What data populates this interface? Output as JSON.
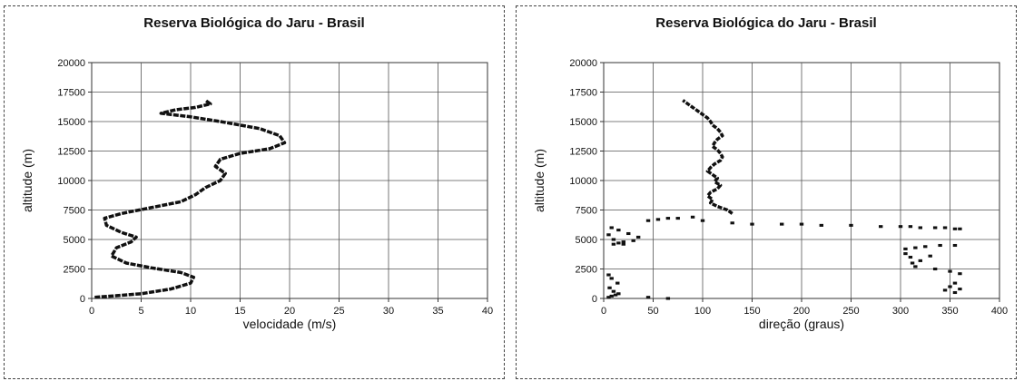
{
  "chart_data": [
    {
      "type": "line",
      "title": "Reserva Biológica do Jaru - Brasil",
      "xlabel": "velocidade (m/s)",
      "ylabel": "altitude (m)",
      "xlim": [
        0,
        40
      ],
      "ylim": [
        0,
        20000
      ],
      "xticks": [
        "0",
        "5",
        "10",
        "15",
        "20",
        "25",
        "30",
        "35",
        "40"
      ],
      "yticks": [
        "0",
        "2500",
        "5000",
        "7500",
        "10000",
        "12500",
        "15000",
        "17500",
        "20000"
      ],
      "grid": true,
      "series": [
        {
          "x": [
            0.3,
            2,
            5,
            8,
            10,
            10.3,
            9,
            6,
            3.5,
            2,
            2.5,
            4,
            4.5,
            3,
            1.5,
            1.3,
            3,
            6,
            9,
            10.5,
            11.5,
            13,
            13.5,
            12.5,
            13,
            15,
            18,
            19.5,
            19,
            17,
            13,
            10,
            7,
            8.5,
            10.5,
            12,
            11.5
          ],
          "y": [
            100,
            200,
            400,
            800,
            1300,
            1800,
            2200,
            2600,
            3000,
            3600,
            4300,
            4800,
            5200,
            5600,
            6200,
            6800,
            7200,
            7700,
            8200,
            8800,
            9400,
            10000,
            10600,
            11200,
            11800,
            12300,
            12700,
            13200,
            13800,
            14400,
            15000,
            15400,
            15700,
            16000,
            16200,
            16500,
            16800
          ]
        }
      ]
    },
    {
      "type": "scatter",
      "title": "Reserva Biológica do Jaru - Brasil",
      "xlabel": "direção (graus)",
      "ylabel": "altitude (m)",
      "xlim": [
        0,
        400
      ],
      "ylim": [
        0,
        20000
      ],
      "xticks": [
        "0",
        "50",
        "100",
        "150",
        "200",
        "250",
        "300",
        "350",
        "400"
      ],
      "yticks": [
        "0",
        "2500",
        "5000",
        "7500",
        "10000",
        "12500",
        "15000",
        "17500",
        "20000"
      ],
      "grid": true,
      "series": [
        {
          "x": [
            5,
            8,
            12,
            15,
            10,
            6,
            14,
            8,
            5,
            20,
            30,
            35,
            25,
            15,
            8,
            5,
            10,
            20,
            15,
            10,
            45,
            55,
            65,
            75,
            90,
            100,
            130,
            150,
            180,
            200,
            220,
            250,
            280,
            300,
            310,
            320,
            335,
            345,
            355,
            360,
            305,
            315,
            325,
            340,
            355,
            310,
            330,
            320,
            312,
            305,
            315,
            335,
            350,
            360,
            355,
            350,
            345,
            355,
            360,
            65,
            45
          ],
          "y": [
            100,
            200,
            300,
            400,
            600,
            900,
            1300,
            1700,
            2000,
            4600,
            4900,
            5200,
            5500,
            5800,
            6000,
            5400,
            5000,
            4800,
            4700,
            4600,
            6600,
            6700,
            6800,
            6800,
            6900,
            6600,
            6400,
            6300,
            6300,
            6300,
            6200,
            6200,
            6100,
            6100,
            6100,
            6000,
            6000,
            6000,
            5900,
            5900,
            4200,
            4300,
            4400,
            4500,
            4500,
            3500,
            3600,
            3200,
            3000,
            3800,
            2700,
            2500,
            2300,
            2100,
            1300,
            1000,
            700,
            500,
            800,
            0,
            100
          ]
        },
        {
          "x": [
            130,
            125,
            115,
            108,
            110,
            105,
            108,
            115,
            118,
            112,
            115,
            110,
            105,
            108,
            112,
            118,
            120,
            118,
            115,
            110,
            112,
            115,
            120,
            118,
            115,
            110,
            108,
            105,
            100,
            95,
            90,
            85,
            80
          ],
          "y": [
            7200,
            7500,
            7800,
            8100,
            8400,
            8700,
            9000,
            9300,
            9600,
            9900,
            10200,
            10500,
            10800,
            11100,
            11400,
            11700,
            12000,
            12300,
            12600,
            12900,
            13200,
            13500,
            13800,
            14100,
            14400,
            14700,
            15000,
            15300,
            15600,
            15900,
            16200,
            16500,
            16800
          ]
        }
      ]
    }
  ]
}
